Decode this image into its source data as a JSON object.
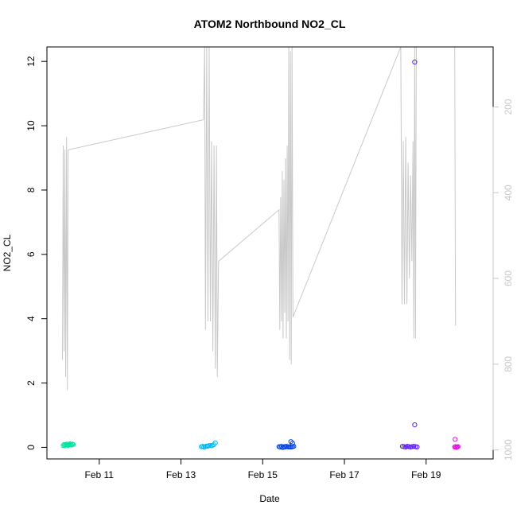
{
  "chart_data": {
    "type": "scatter",
    "title": "ATOM2 Northbound NO2_CL",
    "xlabel": "Date",
    "ylabel": "NO2_CL",
    "x_unit": "days of February",
    "xlim": [
      9.72,
      20.64
    ],
    "ylim": [
      -0.36,
      12.45
    ],
    "x_ticks": [
      11,
      13,
      15,
      17,
      19
    ],
    "x_tick_labels": [
      "Feb 11",
      "Feb 13",
      "Feb 15",
      "Feb 17",
      "Feb 19"
    ],
    "y_ticks": [
      0,
      2,
      4,
      6,
      8,
      10,
      12
    ],
    "y_tick_labels": [
      "0",
      "2",
      "4",
      "6",
      "8",
      "10",
      "12"
    ],
    "y2_ticks": [
      200,
      400,
      600,
      800,
      1000
    ],
    "y2_tick_labels": [
      "200",
      "400",
      "600",
      "800",
      "1000"
    ],
    "y2lim": [
      1021,
      60
    ],
    "y2_color": "#c8c8c8",
    "grid": false,
    "legend": "none",
    "series": [
      {
        "color": "#00e5a0",
        "marker": "circle-open",
        "points": [
          [
            10.12,
            0.06
          ],
          [
            10.14,
            0.09
          ],
          [
            10.16,
            0.05
          ],
          [
            10.18,
            0.08
          ],
          [
            10.2,
            0.1
          ],
          [
            10.22,
            0.07
          ],
          [
            10.24,
            0.06
          ],
          [
            10.26,
            0.09
          ],
          [
            10.28,
            0.11
          ],
          [
            10.3,
            0.08
          ],
          [
            10.32,
            0.07
          ],
          [
            10.34,
            0.1
          ],
          [
            10.36,
            0.09
          ]
        ]
      },
      {
        "color": "#00b8f0",
        "marker": "circle-open",
        "points": [
          [
            13.5,
            0.02
          ],
          [
            13.53,
            0.03
          ],
          [
            13.56,
            0.01
          ],
          [
            13.59,
            0.02
          ],
          [
            13.62,
            0.04
          ],
          [
            13.65,
            0.03
          ],
          [
            13.68,
            0.05
          ],
          [
            13.72,
            0.06
          ],
          [
            13.76,
            0.05
          ],
          [
            13.8,
            0.08
          ],
          [
            13.84,
            0.14
          ]
        ]
      },
      {
        "color": "#0040f0",
        "marker": "circle-open",
        "points": [
          [
            15.4,
            0.02
          ],
          [
            15.43,
            0.01
          ],
          [
            15.46,
            0.03
          ],
          [
            15.49,
            -0.01
          ],
          [
            15.52,
            0.02
          ],
          [
            15.55,
            0.01
          ],
          [
            15.58,
            0.03
          ],
          [
            15.61,
            0.02
          ],
          [
            15.64,
            0.01
          ],
          [
            15.67,
            0.02
          ],
          [
            15.7,
            0.01
          ],
          [
            15.73,
            0.02
          ],
          [
            15.76,
            0.03
          ],
          [
            15.69,
            0.18
          ],
          [
            15.73,
            0.13
          ]
        ]
      },
      {
        "color": "#5b1cf0",
        "marker": "circle-open",
        "points": [
          [
            18.42,
            0.03
          ],
          [
            18.46,
            0.02
          ],
          [
            18.5,
            0.01
          ],
          [
            18.54,
            0.03
          ],
          [
            18.58,
            0.02
          ],
          [
            18.62,
            0.01
          ],
          [
            18.66,
            0.02
          ],
          [
            18.7,
            0.03
          ],
          [
            18.74,
            0.02
          ],
          [
            18.78,
            0.01
          ],
          [
            18.72,
            0.7
          ],
          [
            18.72,
            11.98
          ]
        ]
      },
      {
        "color": "#e010e0",
        "marker": "circle-open",
        "points": [
          [
            19.7,
            0.01
          ],
          [
            19.72,
            0.02
          ],
          [
            19.74,
            0.0
          ],
          [
            19.76,
            0.01
          ],
          [
            19.78,
            0.02
          ],
          [
            19.71,
            0.25
          ]
        ]
      }
    ],
    "line_series": {
      "color": "#c8c8c8",
      "axis": "right",
      "points": [
        [
          10.1,
          790
        ],
        [
          10.12,
          290
        ],
        [
          10.14,
          770
        ],
        [
          10.16,
          300
        ],
        [
          10.18,
          830
        ],
        [
          10.2,
          270
        ],
        [
          10.22,
          860
        ],
        [
          10.24,
          300
        ],
        [
          13.55,
          230
        ],
        [
          13.58,
          60
        ],
        [
          13.6,
          720
        ],
        [
          13.63,
          60
        ],
        [
          13.66,
          700
        ],
        [
          13.69,
          60
        ],
        [
          13.72,
          700
        ],
        [
          13.75,
          280
        ],
        [
          13.78,
          770
        ],
        [
          13.81,
          290
        ],
        [
          13.84,
          810
        ],
        [
          13.87,
          290
        ],
        [
          13.89,
          830
        ],
        [
          13.92,
          560
        ],
        [
          15.4,
          440
        ],
        [
          15.42,
          720
        ],
        [
          15.44,
          410
        ],
        [
          15.46,
          700
        ],
        [
          15.48,
          350
        ],
        [
          15.5,
          740
        ],
        [
          15.52,
          370
        ],
        [
          15.54,
          680
        ],
        [
          15.56,
          320
        ],
        [
          15.58,
          740
        ],
        [
          15.6,
          290
        ],
        [
          15.62,
          700
        ],
        [
          15.64,
          60
        ],
        [
          15.66,
          790
        ],
        [
          15.68,
          70
        ],
        [
          15.7,
          800
        ],
        [
          15.72,
          60
        ],
        [
          15.74,
          690
        ],
        [
          18.38,
          60
        ],
        [
          18.41,
          660
        ],
        [
          18.44,
          280
        ],
        [
          18.47,
          660
        ],
        [
          18.5,
          270
        ],
        [
          18.53,
          660
        ],
        [
          18.56,
          330
        ],
        [
          18.59,
          600
        ],
        [
          18.62,
          360
        ],
        [
          18.65,
          560
        ],
        [
          18.68,
          280
        ],
        [
          18.7,
          740
        ],
        [
          18.72,
          60
        ],
        [
          18.74,
          740
        ],
        [
          18.76,
          60
        ],
        [
          19.7,
          60
        ],
        [
          19.72,
          710
        ]
      ]
    }
  }
}
